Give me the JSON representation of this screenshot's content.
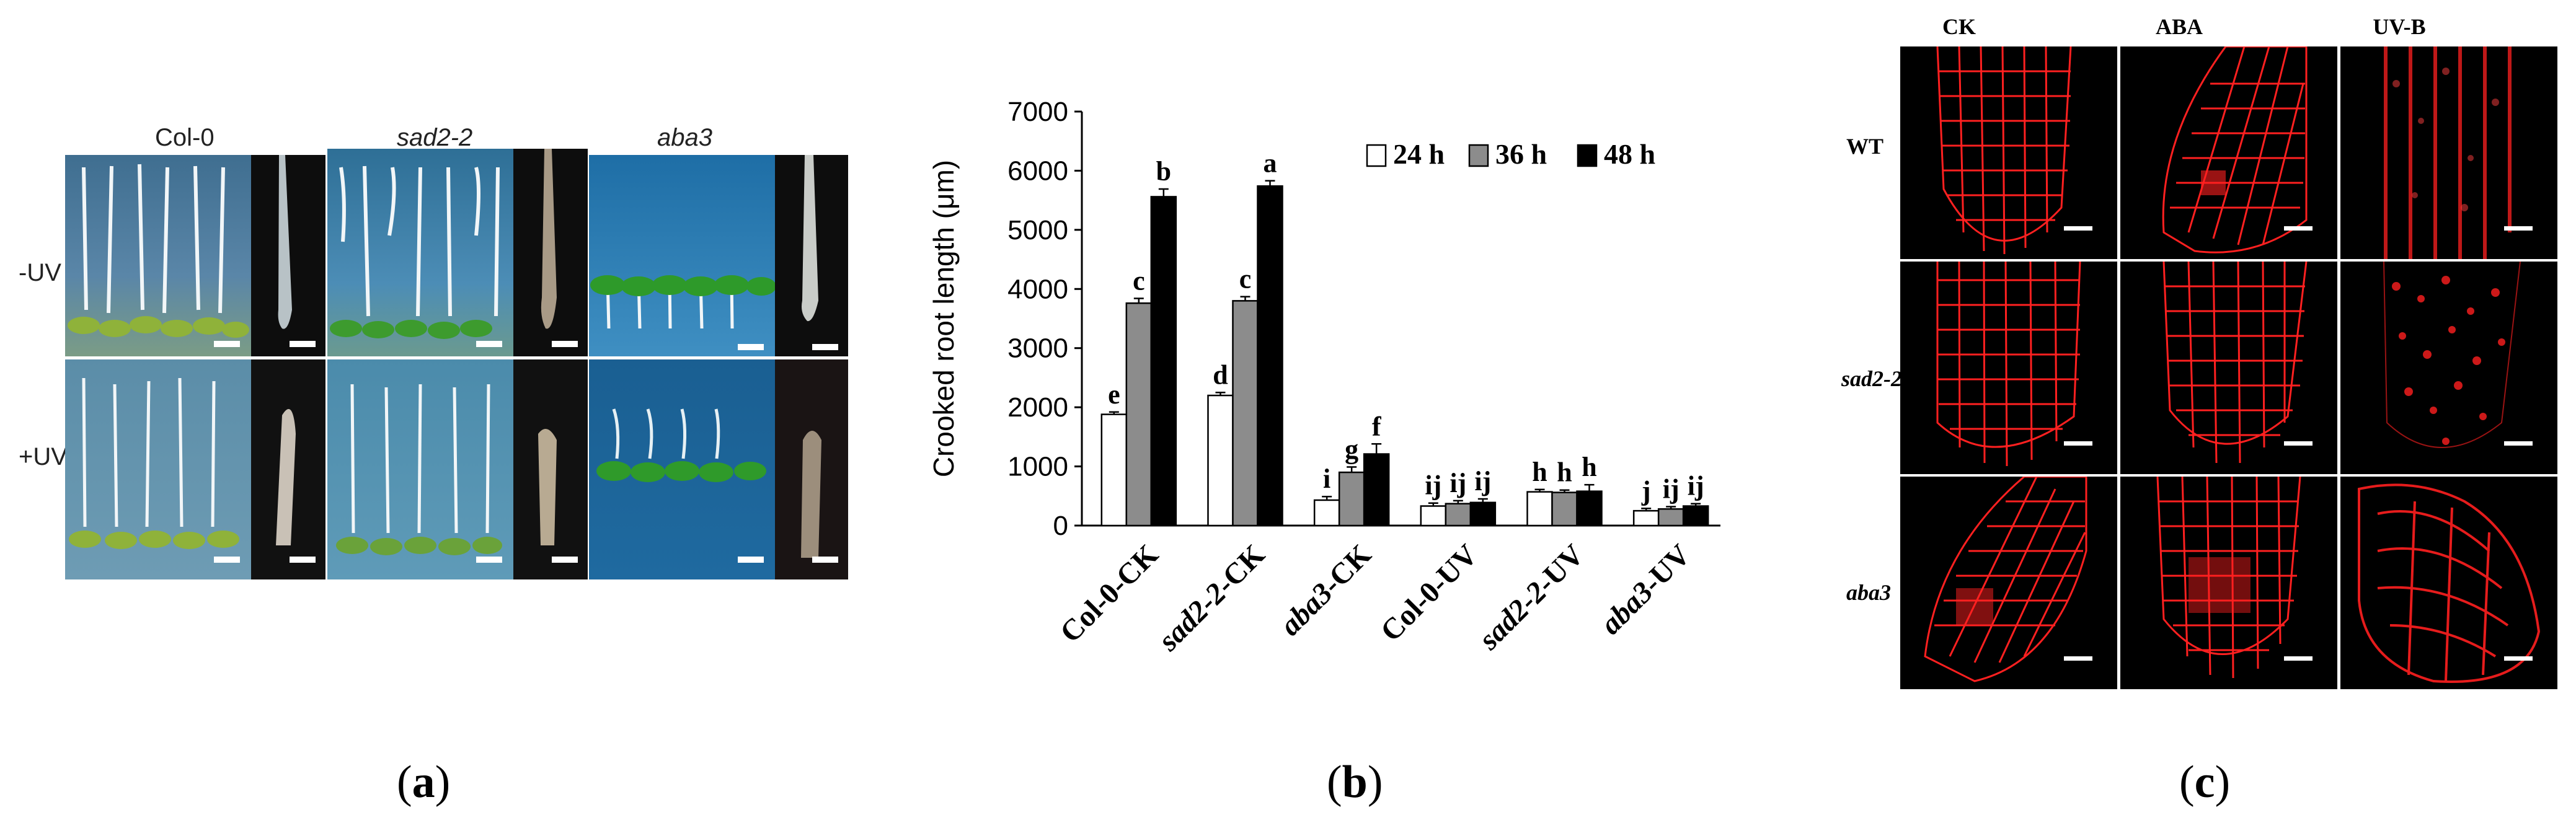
{
  "panel_a": {
    "genotypes": [
      "Col-0",
      "sad2-2",
      "aba3"
    ],
    "treatments": [
      "-UV",
      "+UV"
    ]
  },
  "panel_c": {
    "columns": [
      "CK",
      "ABA",
      "UV-B"
    ],
    "rows": [
      "WT",
      "sad2-2",
      "aba3"
    ]
  },
  "captions": {
    "a": {
      "open": "(",
      "letter": "a",
      "close": ")"
    },
    "b": {
      "open": "(",
      "letter": "b",
      "close": ")"
    },
    "c": {
      "open": "(",
      "letter": "c",
      "close": ")"
    }
  },
  "colors": {
    "bar_24h": "#ffffff",
    "bar_36h": "#8c8c8c",
    "bar_48h": "#000000",
    "confocal_signal": "#ff1a1a"
  },
  "chart_data": {
    "type": "bar",
    "title": "",
    "xlabel": "",
    "ylabel": "Crooked root length (μm)",
    "ylim": [
      0,
      7000
    ],
    "yticks": [
      "0",
      "1000",
      "2000",
      "3000",
      "4000",
      "5000",
      "6000",
      "7000"
    ],
    "categories": [
      "Col-0-CK",
      "sad2-2-CK",
      "aba3-CK",
      "Col-0-UV",
      "sad2-2-UV",
      "aba3-UV"
    ],
    "category_parts": [
      {
        "name": "Col-0",
        "suffix": "-CK",
        "italic": false
      },
      {
        "name": "sad2-2",
        "suffix": "-CK",
        "italic": true
      },
      {
        "name": "aba3",
        "suffix": "-CK",
        "italic": true
      },
      {
        "name": "Col-0",
        "suffix": "-UV",
        "italic": false
      },
      {
        "name": "sad2-2",
        "suffix": "-UV",
        "italic": true
      },
      {
        "name": "aba3",
        "suffix": "-UV",
        "italic": true
      }
    ],
    "series": [
      {
        "name": "24 h",
        "values": [
          1880,
          2200,
          430,
          330,
          570,
          250
        ],
        "errors": [
          40,
          50,
          60,
          50,
          40,
          40
        ],
        "letters": [
          "e",
          "d",
          "i",
          "ij",
          "h",
          "j"
        ]
      },
      {
        "name": "36 h",
        "values": [
          3760,
          3800,
          900,
          370,
          560,
          280
        ],
        "errors": [
          80,
          70,
          90,
          50,
          40,
          40
        ],
        "letters": [
          "c",
          "c",
          "g",
          "ij",
          "h",
          "ij"
        ]
      },
      {
        "name": "48 h",
        "values": [
          5560,
          5740,
          1210,
          390,
          580,
          330
        ],
        "errors": [
          130,
          90,
          170,
          60,
          110,
          40
        ],
        "letters": [
          "b",
          "a",
          "f",
          "ij",
          "h",
          "ij"
        ]
      }
    ],
    "legend_position": "top-right"
  }
}
